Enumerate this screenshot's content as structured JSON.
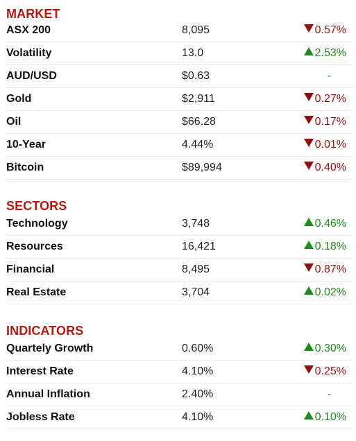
{
  "colors": {
    "section_title": "#b01a12",
    "up": "#1f8a1f",
    "down": "#9a1212",
    "neutral": "#555555"
  },
  "sections": [
    {
      "title": "MARKET",
      "rows": [
        {
          "name": "ASX 200",
          "value": "8,095",
          "change": "0.57%",
          "direction": "down"
        },
        {
          "name": "Volatility",
          "value": "13.0",
          "change": "2.53%",
          "direction": "up"
        },
        {
          "name": "AUD/USD",
          "value": "$0.63",
          "change": "-",
          "direction": "flat"
        },
        {
          "name": "Gold",
          "value": "$2,911",
          "change": "0.27%",
          "direction": "down"
        },
        {
          "name": "Oil",
          "value": "$66.28",
          "change": "0.17%",
          "direction": "down"
        },
        {
          "name": "10-Year",
          "value": "4.44%",
          "change": "0.01%",
          "direction": "down"
        },
        {
          "name": "Bitcoin",
          "value": "$89,994",
          "change": "0.40%",
          "direction": "down"
        }
      ]
    },
    {
      "title": "SECTORS",
      "rows": [
        {
          "name": "Technology",
          "value": "3,748",
          "change": "0.46%",
          "direction": "up"
        },
        {
          "name": "Resources",
          "value": "16,421",
          "change": "0.18%",
          "direction": "up"
        },
        {
          "name": "Financial",
          "value": "8,495",
          "change": "0.87%",
          "direction": "down"
        },
        {
          "name": "Real Estate",
          "value": "3,704",
          "change": "0.02%",
          "direction": "up"
        }
      ]
    },
    {
      "title": "INDICATORS",
      "rows": [
        {
          "name": "Quartely Growth",
          "value": "0.60%",
          "change": "0.30%",
          "direction": "up"
        },
        {
          "name": "Interest Rate",
          "value": "4.10%",
          "change": "0.25%",
          "direction": "down"
        },
        {
          "name": "Annual Inflation",
          "value": "2.40%",
          "change": "-",
          "direction": "flat"
        },
        {
          "name": "Jobless Rate",
          "value": "4.10%",
          "change": "0.10%",
          "direction": "up"
        }
      ]
    }
  ]
}
